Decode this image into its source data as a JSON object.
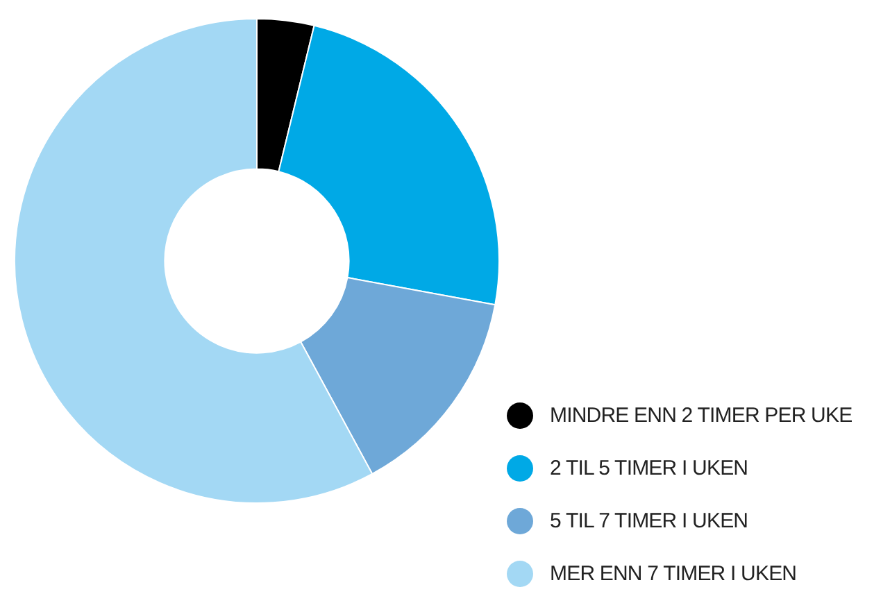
{
  "chart_data": {
    "type": "donut",
    "categories": [
      "MINDRE ENN 2 TIMER PER UKE",
      "2 TIL 5 TIMER I UKEN",
      "5 TIL 7 TIMER I UKEN",
      "MER ENN 7 TIMER I UKEN"
    ],
    "values": [
      3.8,
      24.1,
      14.2,
      57.9
    ],
    "colors": [
      "#000000",
      "#00a9e6",
      "#6ea8d8",
      "#a3d8f4"
    ],
    "legend": "bottom right"
  }
}
